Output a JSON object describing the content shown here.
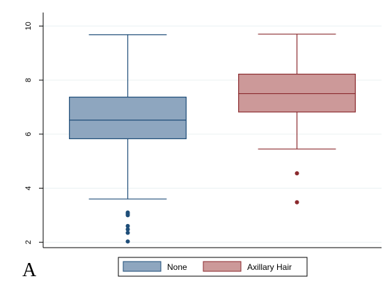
{
  "chart_data": {
    "type": "box",
    "title": "",
    "xlabel": "",
    "ylabel": "",
    "ylim": [
      1.8,
      10.5
    ],
    "yticks": [
      2,
      4,
      6,
      8,
      10
    ],
    "grid": true,
    "legend_position": "bottom",
    "panel_label": "A",
    "series": [
      {
        "name": "None",
        "color": "#8ea6bf",
        "edge_color": "#1f4e79",
        "whisker_low": 3.6,
        "q1": 5.83,
        "median": 6.52,
        "q3": 7.37,
        "whisker_high": 9.68,
        "outliers": [
          3.1,
          3.05,
          3.0,
          2.6,
          2.48,
          2.35,
          2.03
        ]
      },
      {
        "name": "Axillary Hair",
        "color": "#cc9999",
        "edge_color": "#8b2a2e",
        "whisker_low": 5.45,
        "q1": 6.82,
        "median": 7.5,
        "q3": 8.22,
        "whisker_high": 9.7,
        "outliers": [
          4.55,
          3.48
        ]
      }
    ]
  }
}
